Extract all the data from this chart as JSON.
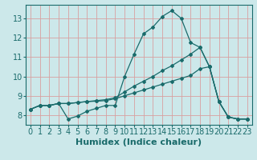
{
  "xlabel": "Humidex (Indice chaleur)",
  "bg_color": "#cce8ea",
  "grid_color": "#d8a0a0",
  "line_color": "#1a6b6b",
  "xlim": [
    -0.5,
    23.5
  ],
  "ylim": [
    7.5,
    13.7
  ],
  "xticks": [
    0,
    1,
    2,
    3,
    4,
    5,
    6,
    7,
    8,
    9,
    10,
    11,
    12,
    13,
    14,
    15,
    16,
    17,
    18,
    19,
    20,
    21,
    22,
    23
  ],
  "yticks": [
    8,
    9,
    10,
    11,
    12,
    13
  ],
  "series": [
    {
      "x": [
        0,
        1,
        2,
        3,
        4,
        5,
        6,
        7,
        8,
        9,
        10,
        11,
        12,
        13,
        14,
        15,
        16,
        17,
        18,
        19,
        20,
        21,
        22,
        23
      ],
      "y": [
        8.3,
        8.5,
        8.5,
        8.6,
        7.8,
        7.95,
        8.2,
        8.35,
        8.5,
        8.5,
        10.0,
        11.15,
        12.2,
        12.55,
        13.1,
        13.4,
        13.0,
        11.75,
        11.5,
        10.5,
        8.7,
        7.9,
        7.8,
        7.8
      ]
    },
    {
      "x": [
        0,
        1,
        2,
        3,
        4,
        5,
        6,
        7,
        8,
        9,
        10,
        11,
        12,
        13,
        14,
        15,
        16,
        17,
        18,
        19,
        20,
        21,
        22,
        23
      ],
      "y": [
        8.3,
        8.5,
        8.5,
        8.6,
        8.6,
        8.65,
        8.7,
        8.75,
        8.8,
        8.9,
        9.2,
        9.5,
        9.75,
        10.0,
        10.3,
        10.55,
        10.85,
        11.15,
        11.5,
        10.5,
        8.7,
        7.9,
        7.8,
        7.8
      ]
    },
    {
      "x": [
        0,
        1,
        2,
        3,
        4,
        5,
        6,
        7,
        8,
        9,
        10,
        11,
        12,
        13,
        14,
        15,
        16,
        17,
        18,
        19,
        20,
        21,
        22,
        23
      ],
      "y": [
        8.3,
        8.5,
        8.5,
        8.6,
        8.6,
        8.65,
        8.7,
        8.72,
        8.75,
        8.85,
        9.0,
        9.15,
        9.3,
        9.45,
        9.6,
        9.75,
        9.9,
        10.05,
        10.4,
        10.5,
        8.7,
        7.9,
        7.8,
        7.8
      ]
    }
  ],
  "tick_fontsize": 7,
  "xlabel_fontsize": 8
}
